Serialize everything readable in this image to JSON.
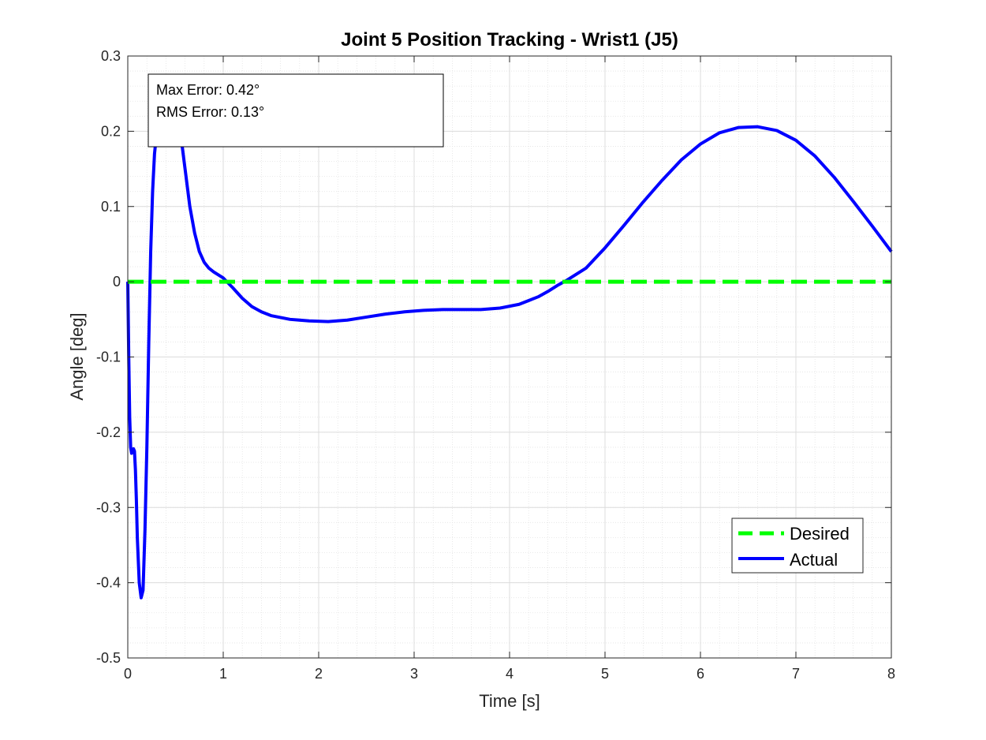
{
  "chart_data": {
    "type": "line",
    "title": "Joint 5 Position Tracking - Wrist1 (J5)",
    "xlabel": "Time [s]",
    "ylabel": "Angle [deg]",
    "xlim": [
      0,
      8
    ],
    "ylim": [
      -0.5,
      0.3
    ],
    "xticks": [
      "0",
      "1",
      "2",
      "3",
      "4",
      "5",
      "6",
      "7",
      "8"
    ],
    "yticks": [
      "-0.5",
      "-0.4",
      "-0.3",
      "-0.2",
      "-0.1",
      "0",
      "0.1",
      "0.2",
      "0.3"
    ],
    "grid": true,
    "minor_grid": true,
    "legend_position": "bottom-right",
    "annotation": [
      "Max Error: 0.42°",
      "RMS Error: 0.13°"
    ],
    "series": [
      {
        "name": "Desired",
        "style": "dashed",
        "color": "#00ff00",
        "x": [
          0,
          8
        ],
        "y": [
          0,
          0
        ]
      },
      {
        "name": "Actual",
        "style": "solid",
        "color": "#0000ff",
        "x": [
          0,
          0.01,
          0.02,
          0.03,
          0.04,
          0.05,
          0.06,
          0.07,
          0.08,
          0.09,
          0.1,
          0.12,
          0.14,
          0.16,
          0.18,
          0.2,
          0.22,
          0.24,
          0.26,
          0.28,
          0.3,
          0.33,
          0.36,
          0.4,
          0.44,
          0.48,
          0.52,
          0.56,
          0.6,
          0.65,
          0.7,
          0.75,
          0.8,
          0.85,
          0.9,
          1.0,
          1.1,
          1.2,
          1.3,
          1.4,
          1.5,
          1.7,
          1.9,
          2.1,
          2.3,
          2.5,
          2.7,
          2.9,
          3.1,
          3.3,
          3.5,
          3.7,
          3.9,
          4.1,
          4.2,
          4.3,
          4.4,
          4.5,
          4.6,
          4.7,
          4.8,
          5.0,
          5.2,
          5.4,
          5.6,
          5.8,
          6.0,
          6.2,
          6.4,
          6.6,
          6.8,
          7.0,
          7.2,
          7.4,
          7.6,
          7.8,
          8.0
        ],
        "y": [
          0.0,
          -0.1,
          -0.18,
          -0.22,
          -0.228,
          -0.225,
          -0.222,
          -0.225,
          -0.25,
          -0.29,
          -0.34,
          -0.4,
          -0.42,
          -0.41,
          -0.33,
          -0.22,
          -0.08,
          0.04,
          0.12,
          0.17,
          0.195,
          0.21,
          0.22,
          0.225,
          0.225,
          0.22,
          0.21,
          0.19,
          0.15,
          0.1,
          0.065,
          0.04,
          0.026,
          0.018,
          0.013,
          0.005,
          -0.008,
          -0.022,
          -0.033,
          -0.04,
          -0.045,
          -0.05,
          -0.052,
          -0.053,
          -0.051,
          -0.047,
          -0.043,
          -0.04,
          -0.038,
          -0.037,
          -0.037,
          -0.037,
          -0.035,
          -0.03,
          -0.025,
          -0.02,
          -0.013,
          -0.005,
          0.002,
          0.01,
          0.018,
          0.045,
          0.075,
          0.106,
          0.135,
          0.162,
          0.183,
          0.198,
          0.205,
          0.206,
          0.201,
          0.188,
          0.167,
          0.139,
          0.107,
          0.074,
          0.04
        ]
      }
    ]
  }
}
